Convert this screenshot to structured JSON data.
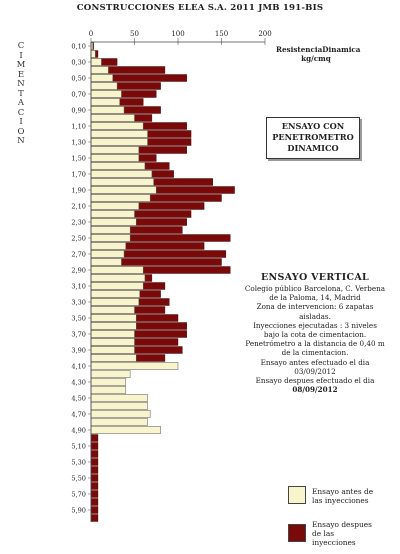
{
  "header": "CONSTRUCCIONES ELEA S.A.    2011 JMB 191-BIS",
  "side_label": [
    "C",
    "I",
    "M",
    "E",
    "N",
    "T",
    "A",
    "C",
    "I",
    "O",
    "N"
  ],
  "units": [
    "ResistenciaDinamica",
    "kg/cmq"
  ],
  "box_title": [
    "ENSAYO CON",
    "PENETROMETRO",
    "DINAMICO"
  ],
  "vertical": {
    "title": "ENSAYO VERTICAL",
    "lines": [
      "Colegio público Barcelona, C. Verbena",
      "de la Paloma, 14, Madrid",
      "Zona de intervencion: 6 zapatas",
      "aisladas.",
      "Inyecciones ejecutadas : 3 niveles",
      "bajo la cota de cimentacion.",
      "Penetrómetro a la distancia de 0,40 m",
      "de la cimentacion.",
      "Ensayo antes efectuado el dia",
      "03/09/2012",
      "Ensayo despues efectuado el dia"
    ],
    "date_after": "08/09/2012"
  },
  "legend": [
    {
      "label": [
        "Ensayo antes de",
        "las inyecciones"
      ],
      "color": "#f8f4cc"
    },
    {
      "label": [
        "Ensayo despues",
        "de las",
        "inyecciones"
      ],
      "color": "#7a0a0a"
    }
  ],
  "chart_data": {
    "type": "bar",
    "orientation": "horizontal",
    "xlabel": "ResistenciaDinamica kg/cmq",
    "xlim": [
      0,
      200
    ],
    "x_ticks": [
      0,
      50,
      100,
      150,
      200
    ],
    "depth_step": 0.1,
    "y_tick_labels": [
      "0,10",
      "0,30",
      "0,50",
      "0,70",
      "0,90",
      "1,10",
      "1,30",
      "1,50",
      "1,70",
      "1,90",
      "2,10",
      "2,30",
      "2,50",
      "2,70",
      "2,90",
      "3,10",
      "3,30",
      "3,50",
      "3,70",
      "3,90",
      "4,10",
      "4,30",
      "4,50",
      "4,70",
      "4,90",
      "5,10",
      "5,30",
      "5,50",
      "5,70",
      "5,90"
    ],
    "series": [
      {
        "name": "Ensayo antes de las inyecciones",
        "color": "#f8f4cc",
        "depths": [
          0.1,
          0.2,
          0.3,
          0.4,
          0.5,
          0.6,
          0.7,
          0.8,
          0.9,
          1.0,
          1.1,
          1.2,
          1.3,
          1.4,
          1.5,
          1.6,
          1.7,
          1.8,
          1.9,
          2.0,
          2.1,
          2.2,
          2.3,
          2.4,
          2.5,
          2.6,
          2.7,
          2.8,
          2.9,
          3.0,
          3.1,
          3.2,
          3.3,
          3.4,
          3.5,
          3.6,
          3.7,
          3.8,
          3.9,
          4.0,
          4.1,
          4.2,
          4.3,
          4.4,
          4.5,
          4.6,
          4.7,
          4.8,
          4.9
        ],
        "values": [
          2,
          5,
          12,
          20,
          25,
          30,
          35,
          33,
          38,
          50,
          60,
          65,
          65,
          55,
          55,
          62,
          70,
          72,
          75,
          68,
          55,
          50,
          52,
          45,
          45,
          40,
          38,
          35,
          60,
          62,
          60,
          56,
          55,
          50,
          52,
          52,
          50,
          50,
          50,
          52,
          100,
          45,
          40,
          40,
          65,
          65,
          68,
          65,
          80
        ]
      },
      {
        "name": "Ensayo despues de las inyecciones",
        "color": "#7a0a0a",
        "depths": [
          0.1,
          0.2,
          0.3,
          0.4,
          0.5,
          0.6,
          0.7,
          0.8,
          0.9,
          1.0,
          1.1,
          1.2,
          1.3,
          1.4,
          1.5,
          1.6,
          1.7,
          1.8,
          1.9,
          2.0,
          2.1,
          2.2,
          2.3,
          2.4,
          2.5,
          2.6,
          2.7,
          2.8,
          2.9,
          3.0,
          3.1,
          3.2,
          3.3,
          3.4,
          3.5,
          3.6,
          3.7,
          3.8,
          3.9,
          4.0,
          4.1,
          4.2,
          4.3,
          4.4,
          4.5,
          4.6,
          4.7,
          4.8,
          4.9,
          5.0,
          5.1,
          5.2,
          5.3,
          5.4,
          5.5,
          5.6,
          5.7,
          5.8,
          5.9,
          6.0
        ],
        "values": [
          3,
          8,
          30,
          85,
          110,
          80,
          75,
          60,
          80,
          70,
          110,
          115,
          115,
          110,
          75,
          90,
          95,
          140,
          165,
          150,
          130,
          115,
          110,
          105,
          160,
          130,
          155,
          150,
          160,
          70,
          85,
          80,
          90,
          85,
          100,
          110,
          110,
          100,
          105,
          85,
          0,
          0,
          0,
          0,
          0,
          0,
          0,
          0,
          0,
          8,
          8,
          8,
          8,
          8,
          8,
          8,
          8,
          8,
          8,
          8
        ]
      }
    ]
  }
}
